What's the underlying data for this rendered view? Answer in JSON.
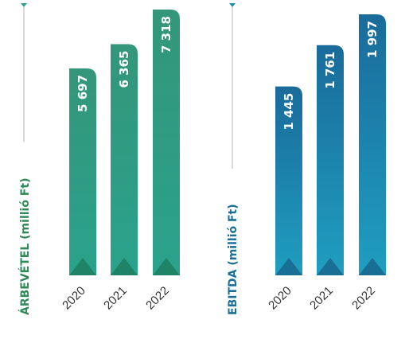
{
  "chart_data": [
    {
      "type": "bar",
      "ylabel": "ÁRBEVÉTEL (millió Ft)",
      "categories": [
        "2020",
        "2021",
        "2022"
      ],
      "values": [
        5697,
        6365,
        7318
      ],
      "value_labels": [
        "5 697",
        "6 365",
        "7 318"
      ],
      "colors": {
        "top": "#34967a",
        "bottom": "#2aa28c",
        "tip": "#1c7a5a",
        "title": "#2e8b57",
        "axis": "#2aa28c"
      }
    },
    {
      "type": "bar",
      "ylabel": "EBITDA (millió Ft)",
      "categories": [
        "2020",
        "2021",
        "2022"
      ],
      "values": [
        1445,
        1761,
        1997
      ],
      "value_labels": [
        "1 445",
        "1 761",
        "1 997"
      ],
      "colors": {
        "top": "#1a6b9a",
        "bottom": "#1f9ec0",
        "tip": "#175f85",
        "title": "#1a6f96",
        "axis": "#1f8fb5"
      }
    }
  ]
}
